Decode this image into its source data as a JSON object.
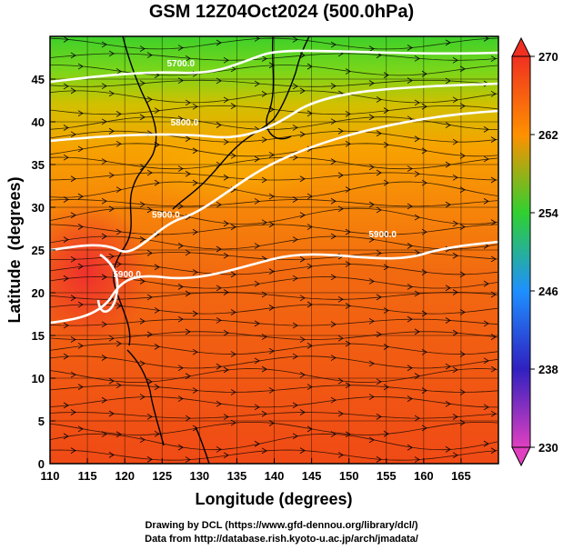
{
  "header": {
    "title": "GSM 12Z04Oct2024 (500.0hPa)"
  },
  "footer": {
    "credit_line_1": "Drawing by DCL (https://www.gfd-dennou.org/library/dcl/)",
    "credit_line_2": "Data from http://database.rish.kyoto-u.ac.jp/arch/jmadata/"
  },
  "chart_data": {
    "type": "heatmap",
    "title": "GSM 12Z04Oct2024 (500.0hPa)",
    "xlabel": "Longitude (degrees)",
    "ylabel": "Latitude  (degrees)",
    "xlim": [
      110,
      170
    ],
    "ylim": [
      0,
      50
    ],
    "x_ticks": [
      "110",
      "115",
      "120",
      "125",
      "130",
      "135",
      "140",
      "145",
      "150",
      "155",
      "160",
      "165"
    ],
    "y_ticks": [
      "0",
      "5",
      "10",
      "15",
      "20",
      "25",
      "30",
      "35",
      "40",
      "45"
    ],
    "grid": true,
    "colorbar": {
      "min": 230,
      "max": 270,
      "ticks": [
        "230",
        "238",
        "246",
        "254",
        "262",
        "270"
      ],
      "colors": [
        "#e040c0",
        "#3020c0",
        "#1e90ff",
        "#30d030",
        "#ff9000",
        "#f03020"
      ]
    },
    "contours": [
      {
        "label": "5700.0",
        "lon": 127.5,
        "lat": 46.5
      },
      {
        "label": "5800.0",
        "lon": 128,
        "lat": 39.6
      },
      {
        "label": "5900.0",
        "lon": 125.5,
        "lat": 28.8
      },
      {
        "label": "5900.0",
        "lon": 154.5,
        "lat": 26.5
      },
      {
        "label": "5900.0",
        "lon": 120.3,
        "lat": 21.8
      }
    ]
  }
}
